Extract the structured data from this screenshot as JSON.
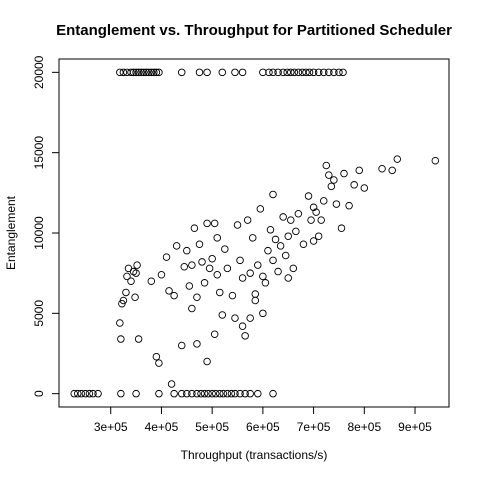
{
  "chart_data": {
    "type": "scatter",
    "title": "Entanglement vs. Throughput for Partitioned Scheduler",
    "x_label": "Throughput (transactions/s)",
    "y_label": "Entanglement",
    "color": "#000000",
    "xlim": [
      198000,
      967000
    ],
    "ylim": [
      -830,
      20830
    ],
    "xticks": [
      {
        "value": 300000,
        "label": "3e+05"
      },
      {
        "value": 400000,
        "label": "4e+05"
      },
      {
        "value": 500000,
        "label": "5e+05"
      },
      {
        "value": 600000,
        "label": "6e+05"
      },
      {
        "value": 700000,
        "label": "7e+05"
      },
      {
        "value": 800000,
        "label": "8e+05"
      },
      {
        "value": 900000,
        "label": "9e+05"
      }
    ],
    "yticks": [
      0,
      5000,
      10000,
      15000,
      20000
    ],
    "x": [
      318000,
      325000,
      332000,
      340000,
      345000,
      350000,
      355000,
      360000,
      365000,
      370000,
      375000,
      380000,
      385000,
      390000,
      395000,
      440000,
      475000,
      490000,
      520000,
      545000,
      560000,
      600000,
      612000,
      620000,
      630000,
      640000,
      648000,
      655000,
      662000,
      670000,
      678000,
      685000,
      692000,
      700000,
      710000,
      720000,
      730000,
      740000,
      750000,
      758000,
      228000,
      235000,
      242000,
      250000,
      258000,
      265000,
      275000,
      320000,
      350000,
      395000,
      425000,
      440000,
      450000,
      460000,
      470000,
      478000,
      485000,
      492000,
      500000,
      507000,
      515000,
      522000,
      530000,
      538000,
      545000,
      555000,
      565000,
      575000,
      590000,
      620000,
      318000,
      322000,
      325000,
      330000,
      332000,
      335000,
      340000,
      345000,
      350000,
      352000,
      355000,
      348000,
      320000,
      380000,
      390000,
      395000,
      400000,
      410000,
      415000,
      420000,
      425000,
      440000,
      445000,
      450000,
      455000,
      460000,
      465000,
      470000,
      475000,
      480000,
      485000,
      490000,
      495000,
      500000,
      505000,
      505000,
      510000,
      515000,
      520000,
      525000,
      530000,
      540000,
      545000,
      550000,
      555000,
      560000,
      565000,
      570000,
      575000,
      580000,
      585000,
      590000,
      595000,
      600000,
      605000,
      610000,
      615000,
      620000,
      625000,
      630000,
      640000,
      645000,
      650000,
      655000,
      660000,
      665000,
      670000,
      680000,
      690000,
      695000,
      700000,
      705000,
      715000,
      725000,
      730000,
      735000,
      740000,
      745000,
      755000,
      760000,
      770000,
      780000,
      790000,
      800000,
      835000,
      855000,
      865000,
      940000,
      560000,
      575000,
      600000,
      585000,
      470000,
      490000,
      510000,
      460000,
      430000,
      620000,
      635000,
      650000,
      700000,
      710000,
      720000
    ],
    "y": [
      20000,
      20000,
      20000,
      20000,
      20000,
      20000,
      20000,
      20000,
      20000,
      20000,
      20000,
      20000,
      20000,
      20000,
      20000,
      20000,
      20000,
      20000,
      20000,
      20000,
      20000,
      20000,
      20000,
      20000,
      20000,
      20000,
      20000,
      20000,
      20000,
      20000,
      20000,
      20000,
      20000,
      20000,
      20000,
      20000,
      20000,
      20000,
      20000,
      20000,
      0,
      0,
      0,
      0,
      0,
      0,
      0,
      0,
      0,
      0,
      0,
      0,
      0,
      0,
      0,
      0,
      0,
      0,
      0,
      0,
      0,
      0,
      0,
      0,
      0,
      0,
      0,
      0,
      0,
      0,
      4400,
      5600,
      5800,
      6300,
      7300,
      7800,
      7000,
      7600,
      7500,
      8000,
      3400,
      6000,
      3400,
      7000,
      2300,
      1900,
      7400,
      8500,
      6400,
      600,
      6100,
      3000,
      7900,
      8900,
      6700,
      5300,
      10300,
      6000,
      9300,
      8200,
      6900,
      10600,
      7800,
      8400,
      3700,
      10600,
      7400,
      6300,
      4900,
      9000,
      7800,
      6100,
      4700,
      10500,
      8300,
      7200,
      3600,
      10800,
      7500,
      9700,
      5800,
      8000,
      11500,
      7300,
      6900,
      8900,
      10200,
      12400,
      9600,
      7600,
      11000,
      8600,
      9800,
      10800,
      7800,
      10100,
      11200,
      9300,
      12300,
      10800,
      9500,
      11300,
      10800,
      14200,
      13600,
      12900,
      13300,
      11800,
      10300,
      13700,
      11700,
      13000,
      13900,
      12800,
      14000,
      13900,
      14600,
      14500,
      4200,
      4700,
      5000,
      6200,
      3100,
      2000,
      9700,
      8000,
      9200,
      8300,
      9200,
      7200,
      11600,
      9800,
      12000
    ]
  }
}
